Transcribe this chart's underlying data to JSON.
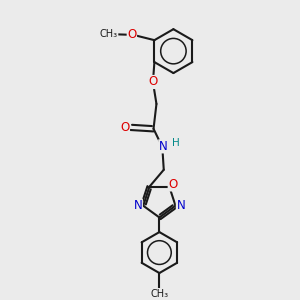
{
  "bg_color": "#ebebeb",
  "bond_color": "#1a1a1a",
  "bond_width": 1.5,
  "atom_colors": {
    "O": "#dd0000",
    "N": "#0000cc",
    "C": "#1a1a1a",
    "H": "#008888"
  },
  "font_size_atom": 8.5
}
